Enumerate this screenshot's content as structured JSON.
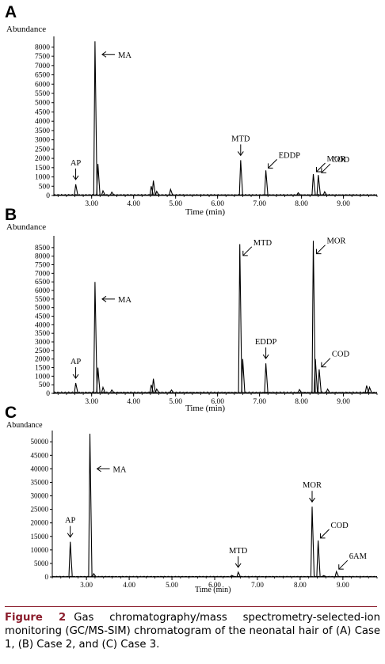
{
  "chart_data": [
    {
      "type": "line",
      "panel_label": "A",
      "ylabel": "Abundance",
      "xlabel": "Time (min)",
      "xlim": [
        2.1,
        9.8
      ],
      "ylim": [
        0,
        8400
      ],
      "y_ticks": [
        0,
        500,
        1000,
        1500,
        2000,
        2500,
        3000,
        3500,
        4000,
        4500,
        5000,
        5500,
        6000,
        6500,
        7000,
        7500,
        8000
      ],
      "x_ticks": [
        "3.00",
        "4.00",
        "5.00",
        "6.00",
        "7.00",
        "8.00",
        "9.00"
      ],
      "baseline": 60,
      "peaks": [
        {
          "x": 2.62,
          "y": 600
        },
        {
          "x": 3.08,
          "y": 8300
        },
        {
          "x": 3.15,
          "y": 1700
        },
        {
          "x": 3.27,
          "y": 250
        },
        {
          "x": 3.48,
          "y": 180
        },
        {
          "x": 4.42,
          "y": 500
        },
        {
          "x": 4.47,
          "y": 800
        },
        {
          "x": 4.55,
          "y": 220
        },
        {
          "x": 4.88,
          "y": 330
        },
        {
          "x": 6.55,
          "y": 1900
        },
        {
          "x": 7.15,
          "y": 1350
        },
        {
          "x": 7.92,
          "y": 150
        },
        {
          "x": 8.28,
          "y": 1150
        },
        {
          "x": 8.4,
          "y": 1100
        },
        {
          "x": 8.55,
          "y": 200
        }
      ],
      "annotations": [
        {
          "label": "AP",
          "x": 2.62,
          "y": 600,
          "style": "down"
        },
        {
          "label": "MA",
          "x": 3.1,
          "y": 7600,
          "style": "left"
        },
        {
          "label": "MTD",
          "x": 6.55,
          "y": 1900,
          "style": "down"
        },
        {
          "label": "EDDP",
          "x": 7.15,
          "y": 1350,
          "style": "diag"
        },
        {
          "label": "MOR",
          "x": 8.3,
          "y": 1150,
          "style": "diag"
        },
        {
          "label": "COD",
          "x": 8.42,
          "y": 1100,
          "style": "diag"
        }
      ]
    },
    {
      "type": "line",
      "panel_label": "B",
      "ylabel": "Abundance",
      "xlabel": "Time (min)",
      "xlim": [
        2.1,
        9.8
      ],
      "ylim": [
        0,
        9000
      ],
      "y_ticks": [
        0,
        500,
        1000,
        1500,
        2000,
        2500,
        3000,
        3500,
        4000,
        4500,
        5000,
        5500,
        6000,
        6500,
        7000,
        7500,
        8000,
        8500
      ],
      "x_ticks": [
        "3.00",
        "4.00",
        "5.00",
        "6.00",
        "7.00",
        "8.00",
        "9.00"
      ],
      "baseline": 90,
      "peaks": [
        {
          "x": 2.62,
          "y": 600
        },
        {
          "x": 3.08,
          "y": 6500
        },
        {
          "x": 3.15,
          "y": 1500
        },
        {
          "x": 3.27,
          "y": 350
        },
        {
          "x": 3.48,
          "y": 200
        },
        {
          "x": 4.42,
          "y": 500
        },
        {
          "x": 4.47,
          "y": 850
        },
        {
          "x": 4.55,
          "y": 250
        },
        {
          "x": 4.9,
          "y": 200
        },
        {
          "x": 6.53,
          "y": 8700
        },
        {
          "x": 6.6,
          "y": 2000
        },
        {
          "x": 7.15,
          "y": 1750
        },
        {
          "x": 7.95,
          "y": 220
        },
        {
          "x": 8.28,
          "y": 8900
        },
        {
          "x": 8.33,
          "y": 2000
        },
        {
          "x": 8.42,
          "y": 1400
        },
        {
          "x": 8.62,
          "y": 250
        },
        {
          "x": 9.55,
          "y": 450
        },
        {
          "x": 9.62,
          "y": 350
        }
      ],
      "annotations": [
        {
          "label": "AP",
          "x": 2.62,
          "y": 600,
          "style": "down"
        },
        {
          "label": "MA",
          "x": 3.1,
          "y": 5500,
          "style": "left"
        },
        {
          "label": "MTD",
          "x": 6.55,
          "y": 7900,
          "style": "diag"
        },
        {
          "label": "EDDP",
          "x": 7.15,
          "y": 1750,
          "style": "down"
        },
        {
          "label": "MOR",
          "x": 8.3,
          "y": 8000,
          "style": "diag"
        },
        {
          "label": "COD",
          "x": 8.42,
          "y": 1400,
          "style": "diag"
        }
      ]
    },
    {
      "type": "line",
      "panel_label": "C",
      "ylabel": "Abundance",
      "xlabel": "Time (min)",
      "xlim": [
        2.2,
        9.8
      ],
      "ylim": [
        0,
        53000
      ],
      "y_ticks": [
        0,
        5000,
        10000,
        15000,
        20000,
        25000,
        30000,
        35000,
        40000,
        45000,
        50000
      ],
      "x_ticks": [
        "3.00",
        "4.00",
        "5.00",
        "6.00",
        "7.00",
        "8.00",
        "9.00"
      ],
      "baseline": 250,
      "peaks": [
        {
          "x": 2.62,
          "y": 13000
        },
        {
          "x": 3.08,
          "y": 53000
        },
        {
          "x": 3.17,
          "y": 1200
        },
        {
          "x": 6.55,
          "y": 1800
        },
        {
          "x": 6.4,
          "y": 600
        },
        {
          "x": 8.28,
          "y": 26000
        },
        {
          "x": 8.42,
          "y": 13500
        },
        {
          "x": 8.55,
          "y": 500
        },
        {
          "x": 8.85,
          "y": 2000
        }
      ],
      "annotations": [
        {
          "label": "AP",
          "x": 2.62,
          "y": 13000,
          "style": "down"
        },
        {
          "label": "MA",
          "x": 3.1,
          "y": 40000,
          "style": "left"
        },
        {
          "label": "MTD",
          "x": 6.55,
          "y": 1800,
          "style": "down"
        },
        {
          "label": "MOR",
          "x": 8.28,
          "y": 26000,
          "style": "down"
        },
        {
          "label": "COD",
          "x": 8.42,
          "y": 13500,
          "style": "diag"
        },
        {
          "label": "6AM",
          "x": 8.85,
          "y": 2000,
          "style": "diag"
        }
      ]
    }
  ],
  "caption": {
    "label": "Figure 2",
    "text": "Gas chromatography/mass spectrometry-selected-ion monitoring (GC/MS-SIM) chromatogram of the neonatal hair of (A) Case 1, (B) Case 2, and (C) Case 3."
  },
  "colors": {
    "trace": "#000000",
    "caption_label": "#8b1d2c"
  }
}
